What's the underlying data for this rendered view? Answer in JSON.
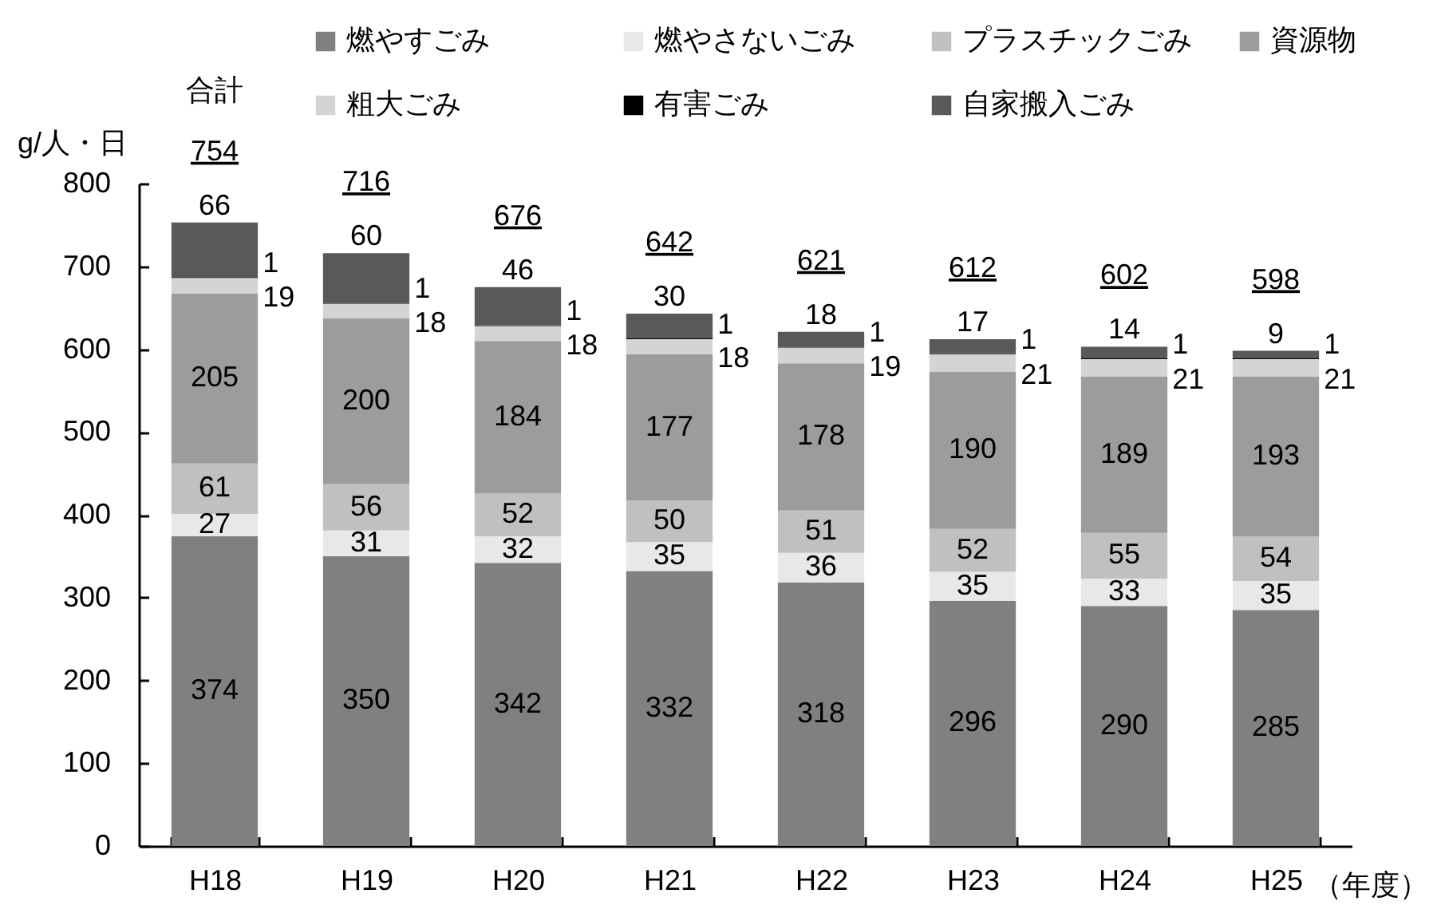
{
  "chart_data": {
    "type": "bar",
    "stacked": true,
    "categories": [
      "H18",
      "H19",
      "H20",
      "H21",
      "H22",
      "H23",
      "H24",
      "H25"
    ],
    "series": [
      {
        "name": "燃やすごみ",
        "color": "#808080",
        "values": [
          374,
          350,
          342,
          332,
          318,
          296,
          290,
          285
        ]
      },
      {
        "name": "燃やさないごみ",
        "color": "#e8e8e8",
        "values": [
          27,
          31,
          32,
          35,
          36,
          35,
          33,
          35
        ]
      },
      {
        "name": "プラスチックごみ",
        "color": "#c0c0c0",
        "values": [
          61,
          56,
          52,
          50,
          51,
          52,
          55,
          54
        ]
      },
      {
        "name": "資源物",
        "color": "#9c9c9c",
        "values": [
          205,
          200,
          184,
          177,
          178,
          190,
          189,
          193
        ]
      },
      {
        "name": "粗大ごみ",
        "color": "#d4d4d4",
        "values": [
          19,
          18,
          18,
          18,
          19,
          21,
          21,
          21
        ]
      },
      {
        "name": "有害ごみ",
        "color": "#000000",
        "values": [
          1,
          1,
          1,
          1,
          1,
          1,
          1,
          1
        ]
      },
      {
        "name": "自家搬入ごみ",
        "color": "#595959",
        "values": [
          66,
          60,
          46,
          30,
          18,
          17,
          14,
          9
        ]
      }
    ],
    "totals": [
      "754",
      "716",
      "676",
      "642",
      "621",
      "612",
      "602",
      "598"
    ],
    "annotations": [
      "合計"
    ],
    "ylabel": "g/人・日",
    "xlabel": "（年度）",
    "ylim": [
      0,
      800
    ],
    "yticks": [
      0,
      100,
      200,
      300,
      400,
      500,
      600,
      700,
      800
    ],
    "data_labels": true,
    "legend": "top"
  }
}
